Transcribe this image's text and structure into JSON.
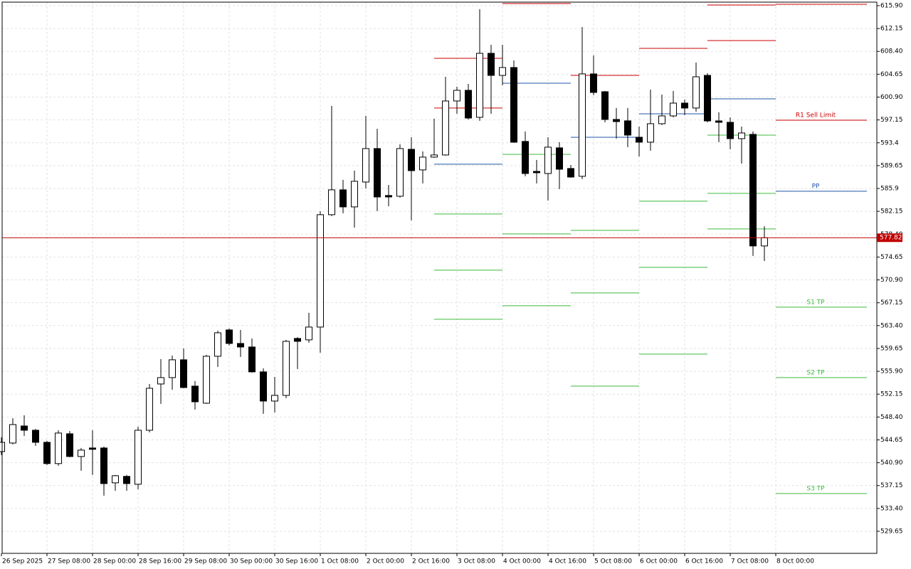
{
  "chart_data": {
    "type": "candlestick",
    "categories": [
      "26 Sep 2025",
      null,
      null,
      null,
      "27 Sep 08:00",
      null,
      null,
      null,
      "28 Sep 00:00",
      null,
      null,
      null,
      "28 Sep 16:00",
      null,
      null,
      null,
      "29 Sep 08:00",
      null,
      null,
      null,
      "30 Sep 00:00",
      null,
      null,
      null,
      "30 Sep 16:00",
      null,
      null,
      null,
      "1 Oct 08:00",
      null,
      null,
      null,
      "2 Oct 00:00",
      null,
      null,
      null,
      "2 Oct 16:00",
      null,
      null,
      null,
      "3 Oct 08:00",
      null,
      null,
      null,
      "4 Oct 00:00",
      null,
      null,
      null,
      "4 Oct 16:00",
      null,
      null,
      null,
      "5 Oct 08:00",
      null,
      null,
      null,
      "6 Oct 00:00",
      null,
      null,
      null,
      "6 Oct 16:00",
      null,
      null,
      null,
      "7 Oct 08:00",
      null,
      null,
      null,
      "8 Oct 00:00"
    ],
    "open": [
      542.73,
      544.13,
      546.93,
      546.23,
      544.25,
      540.76,
      545.65,
      541.92,
      543.32,
      543.32,
      537.6,
      538.66,
      537.37,
      546.23,
      553.82,
      554.87,
      557.79,
      553.47,
      550.67,
      558.37,
      562.69,
      560.47,
      559.89,
      555.81,
      551.02,
      551.95,
      561.29,
      561.06,
      563.16,
      581.6,
      585.68,
      582.88,
      586.96,
      592.45,
      584.75,
      584.63,
      592.33,
      588.95,
      591.05,
      591.4,
      600.26,
      602.01,
      597.58,
      608.08,
      604.46,
      605.75,
      593.62,
      588.71,
      588.36,
      592.57,
      589.18,
      587.9,
      604.7,
      601.78,
      597.23,
      597.0,
      594.31,
      593.5,
      596.53,
      597.81,
      599.91,
      599.1,
      604.46,
      596.99,
      596.76,
      594.08,
      594.78,
      576.47,
      null
    ],
    "high": [
      545.07,
      548.21,
      548.68,
      546.46,
      544.48,
      546.23,
      546.11,
      543.32,
      546.23,
      543.55,
      538.89,
      538.89,
      546.82,
      553.82,
      557.9,
      558.49,
      559.66,
      554.3,
      558.6,
      562.57,
      562.92,
      562.69,
      561.29,
      556.39,
      554.99,
      561.06,
      561.52,
      565.5,
      582.18,
      599.45,
      587.31,
      588.83,
      597.81,
      595.71,
      586.49,
      593.15,
      594.31,
      591.98,
      597.35,
      604.23,
      602.6,
      603.06,
      615.32,
      609.48,
      609.48,
      606.91,
      595.25,
      590.58,
      594.31,
      593.5,
      589.76,
      612.4,
      607.73,
      601.9,
      599.1,
      599.1,
      596.06,
      602.13,
      601.31,
      601.9,
      600.5,
      606.56,
      604.81,
      598.4,
      597.58,
      596.06,
      595.25,
      579.7,
      null
    ],
    "low": [
      542.16,
      543.9,
      545.3,
      543.67,
      540.52,
      540.4,
      541.8,
      539.59,
      538.89,
      535.5,
      536.3,
      536.3,
      536.55,
      545.88,
      550.55,
      552.89,
      553.12,
      549.62,
      550.55,
      556.62,
      560.12,
      558.25,
      555.69,
      548.92,
      549.15,
      551.49,
      556.27,
      560.59,
      558.96,
      581.36,
      581.83,
      579.49,
      585.91,
      582.18,
      582.99,
      584.4,
      580.66,
      586.73,
      590.93,
      591.28,
      598.16,
      597.23,
      597.0,
      598.16,
      602.83,
      593.38,
      587.9,
      586.73,
      583.93,
      585.8,
      587.66,
      587.43,
      601.2,
      596.76,
      594.08,
      592.68,
      591.16,
      592.1,
      596.3,
      597.58,
      597.93,
      598.51,
      596.76,
      593.5,
      592.33,
      589.99,
      574.83,
      574.0,
      null
    ],
    "close": [
      544.25,
      547.16,
      546.23,
      544.25,
      540.76,
      545.77,
      541.92,
      542.97,
      543.1,
      537.48,
      538.77,
      537.48,
      546.23,
      553.12,
      554.87,
      557.79,
      553.24,
      550.9,
      558.37,
      562.22,
      560.47,
      559.89,
      555.81,
      551.02,
      551.95,
      560.82,
      560.82,
      563.16,
      581.6,
      585.68,
      582.88,
      587.08,
      592.45,
      584.51,
      584.51,
      592.45,
      588.83,
      591.05,
      591.4,
      600.26,
      602.01,
      597.46,
      608.08,
      604.46,
      605.75,
      593.5,
      588.36,
      588.48,
      592.68,
      589.06,
      587.78,
      604.7,
      601.66,
      597.23,
      596.88,
      594.66,
      593.5,
      596.53,
      597.81,
      599.91,
      599.1,
      604.23,
      596.99,
      596.76,
      594.08,
      595.01,
      576.47,
      577.82,
      null
    ],
    "up_color": "#ffffff",
    "down_color": "#000000",
    "current_price": 577.82,
    "current_color": "#c00000",
    "ylim": [
      526.03,
      616.48
    ],
    "yticks": [
      {
        "value": 615.9,
        "label": "615.90"
      },
      612.15,
      {
        "value": 608.4,
        "label": "608.40"
      },
      604.65,
      {
        "value": 600.9,
        "label": "600.90"
      },
      597.15,
      593.4,
      589.65,
      585.9,
      582.15,
      {
        "value": 578.4,
        "label": "578.40"
      },
      574.65,
      {
        "value": 570.9,
        "label": "570.90"
      },
      567.15,
      {
        "value": 563.4,
        "label": "563.40"
      },
      559.65,
      {
        "value": 555.9,
        "label": "555.90"
      },
      552.15,
      {
        "value": 548.4,
        "label": "548.40"
      },
      544.65,
      {
        "value": 540.9,
        "label": "540.90"
      },
      537.15,
      {
        "value": 533.4,
        "label": "533.40"
      },
      529.65
    ],
    "grid": true,
    "pivots": [
      {
        "levels": [
          {
            "value": 616.48,
            "color": "#cc0000"
          },
          {
            "value": 607.26,
            "color": "#cc0000"
          },
          {
            "value": 599.1,
            "color": "#cc0000"
          },
          {
            "value": 589.88,
            "color": "#1f56a8"
          },
          {
            "value": 581.71,
            "color": "#3cba3c"
          },
          {
            "value": 572.49,
            "color": "#3cba3c"
          },
          {
            "value": 564.44,
            "color": "#3cba3c"
          }
        ]
      },
      {
        "levels": [
          {
            "value": 616.25,
            "color": "#cc0000"
          },
          {
            "value": 603.18,
            "color": "#1f56a8"
          },
          {
            "value": 591.51,
            "color": "#3cba3c"
          },
          {
            "value": 578.44,
            "color": "#3cba3c"
          },
          {
            "value": 566.66,
            "color": "#3cba3c"
          }
        ]
      },
      {
        "levels": [
          {
            "value": 604.46,
            "color": "#cc0000"
          },
          {
            "value": 594.31,
            "color": "#1f56a8"
          },
          {
            "value": 579.03,
            "color": "#3cba3c"
          },
          {
            "value": 568.76,
            "color": "#3cba3c"
          },
          {
            "value": 553.47,
            "color": "#3cba3c"
          }
        ]
      },
      {
        "levels": [
          {
            "value": 608.9,
            "color": "#cc0000"
          },
          {
            "value": 598.16,
            "color": "#1f56a8"
          },
          {
            "value": 583.81,
            "color": "#3cba3c"
          },
          {
            "value": 572.96,
            "color": "#3cba3c"
          },
          {
            "value": 558.72,
            "color": "#3cba3c"
          }
        ]
      },
      {
        "levels": [
          {
            "value": 616.02,
            "color": "#cc0000"
          },
          {
            "value": 610.18,
            "color": "#cc0000"
          },
          {
            "value": 600.61,
            "color": "#1f56a8"
          },
          {
            "value": 594.66,
            "color": "#3cba3c"
          },
          {
            "value": 585.1,
            "color": "#3cba3c"
          },
          {
            "value": 579.26,
            "color": "#3cba3c"
          }
        ]
      },
      {
        "levels": [
          {
            "value": 616.13,
            "color": "#cc0000"
          },
          {
            "value": 597.11,
            "color": "#cc0000",
            "label": "R1 Sell Limit"
          },
          {
            "value": 585.45,
            "color": "#1f56a8",
            "label": "PP"
          },
          {
            "value": 566.42,
            "color": "#3cba3c",
            "label": "S1 TP"
          },
          {
            "value": 554.87,
            "color": "#3cba3c",
            "label": "S2 TP"
          },
          {
            "value": 535.85,
            "color": "#3cba3c",
            "label": "S3 TP"
          }
        ]
      }
    ]
  }
}
